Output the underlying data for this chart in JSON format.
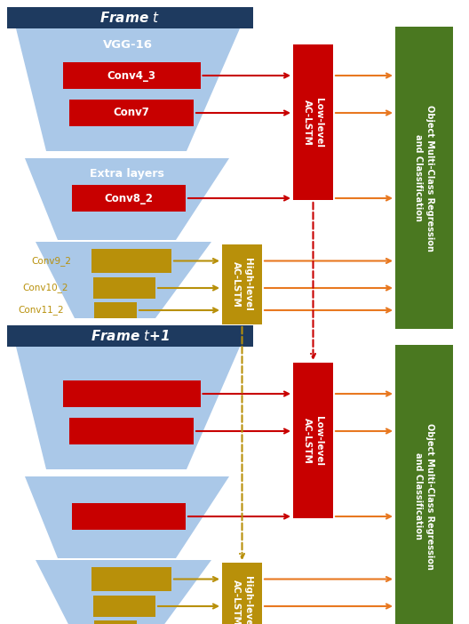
{
  "fig_width": 5.28,
  "fig_height": 7.02,
  "dpi": 100,
  "bg_color": "#ffffff",
  "frame_header_color": "#1e3a5f",
  "trapezoid_fill": "#aac8e8",
  "red_box_fill": "#c80000",
  "gold_box_fill": "#b8900a",
  "green_box_fill": "#4a7820",
  "red_arrow": "#c80000",
  "gold_arrow": "#b8900a",
  "orange_arrow": "#e87820",
  "frame_t_label": "Frame $t$",
  "frame_t1_label": "Frame $t$+1",
  "vgg_label": "VGG-16",
  "extra_label": "Extra layers",
  "conv4_3_label": "Conv4_3",
  "conv7_label": "Conv7",
  "conv8_2_label": "Conv8_2",
  "conv9_2_label": "Conv9_2",
  "conv10_2_label": "Conv10_2",
  "conv11_2_label": "Conv11_2",
  "low_lstm_label": "Low-level\nAC-LSTM",
  "high_lstm_label": "High-level\nAC-LSTM",
  "output_label": "Object Multi-Class Regression\nand Classification"
}
